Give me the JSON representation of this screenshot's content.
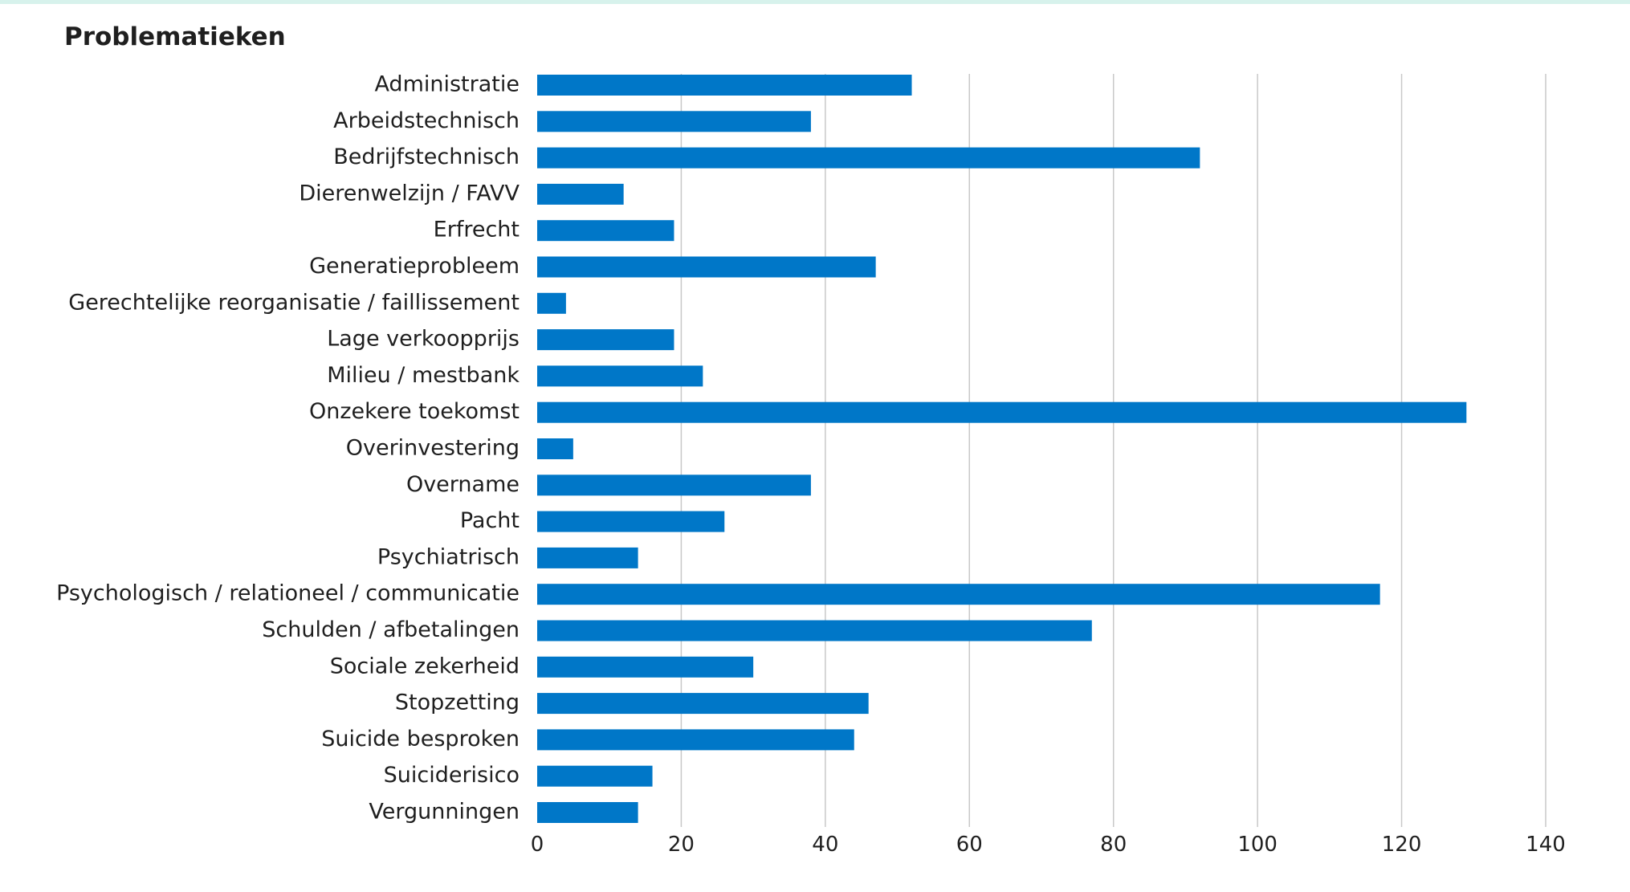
{
  "chart_data": {
    "type": "bar",
    "orientation": "horizontal",
    "title": "Problematieken",
    "xlabel": "",
    "ylabel": "",
    "xlim": [
      0,
      140
    ],
    "ticks": [
      0,
      20,
      40,
      60,
      80,
      100,
      120,
      140
    ],
    "grid": true,
    "bar_color": "#0077c8",
    "grid_color": "#c8c8c8",
    "categories": [
      "Administratie",
      "Arbeidstechnisch",
      "Bedrijfstechnisch",
      "Dierenwelzijn / FAVV",
      "Erfrecht",
      "Generatieprobleem",
      "Gerechtelijke reorganisatie / faillissement",
      "Lage verkoopprijs",
      "Milieu / mestbank",
      "Onzekere toekomst",
      "Overinvestering",
      "Overname",
      "Pacht",
      "Psychiatrisch",
      "Psychologisch / relationeel / communicatie",
      "Schulden / afbetalingen",
      "Sociale zekerheid",
      "Stopzetting",
      "Suicide besproken",
      "Suiciderisico",
      "Vergunningen"
    ],
    "values": [
      52,
      38,
      92,
      12,
      19,
      47,
      4,
      19,
      23,
      129,
      5,
      38,
      26,
      14,
      117,
      77,
      30,
      46,
      44,
      16,
      14
    ]
  }
}
